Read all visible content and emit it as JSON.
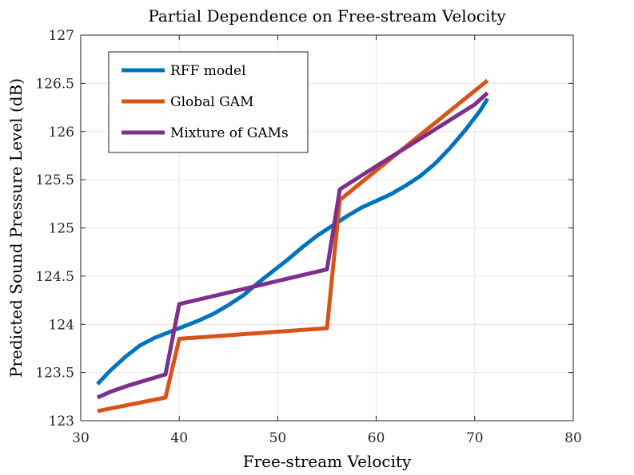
{
  "chart_data": {
    "type": "line",
    "title": "Partial Dependence on Free-stream Velocity",
    "xlabel": "Free-stream Velocity",
    "ylabel": "Predicted Sound Pressure Level (dB)",
    "xlim": [
      30,
      80
    ],
    "ylim": [
      123,
      127
    ],
    "xticks": [
      30,
      40,
      50,
      60,
      70,
      80
    ],
    "yticks": [
      123,
      123.5,
      124,
      124.5,
      125,
      125.5,
      126,
      126.5,
      127
    ],
    "grid": true,
    "legend_position": "top-left",
    "series": [
      {
        "name": "RFF model",
        "color": "#0072BD",
        "x": [
          31.7,
          33.0,
          34.5,
          36.0,
          37.5,
          39.0,
          40.5,
          42.0,
          43.5,
          45.0,
          46.5,
          48.0,
          49.5,
          51.0,
          52.5,
          54.0,
          55.5,
          57.0,
          58.5,
          60.0,
          61.5,
          63.0,
          64.5,
          66.0,
          67.5,
          69.0,
          70.5,
          71.3
        ],
        "y": [
          123.38,
          123.52,
          123.66,
          123.78,
          123.86,
          123.92,
          123.98,
          124.04,
          124.11,
          124.2,
          124.3,
          124.43,
          124.55,
          124.67,
          124.8,
          124.92,
          125.02,
          125.12,
          125.21,
          125.28,
          125.35,
          125.44,
          125.54,
          125.67,
          125.83,
          126.01,
          126.21,
          126.34
        ]
      },
      {
        "name": "Global GAM",
        "color": "#D95319",
        "x": [
          31.7,
          38.6,
          40.0,
          55.0,
          56.3,
          71.3
        ],
        "y": [
          123.1,
          123.24,
          123.85,
          123.96,
          125.29,
          126.53
        ]
      },
      {
        "name": "Mixture of GAMs",
        "color": "#7E2F8E",
        "x": [
          31.7,
          33.0,
          35.0,
          38.6,
          40.0,
          50.0,
          55.0,
          56.3,
          60.0,
          65.0,
          70.0,
          71.3
        ],
        "y": [
          123.24,
          123.3,
          123.37,
          123.48,
          124.21,
          124.45,
          124.57,
          125.4,
          125.64,
          125.96,
          126.28,
          126.4
        ]
      }
    ]
  }
}
